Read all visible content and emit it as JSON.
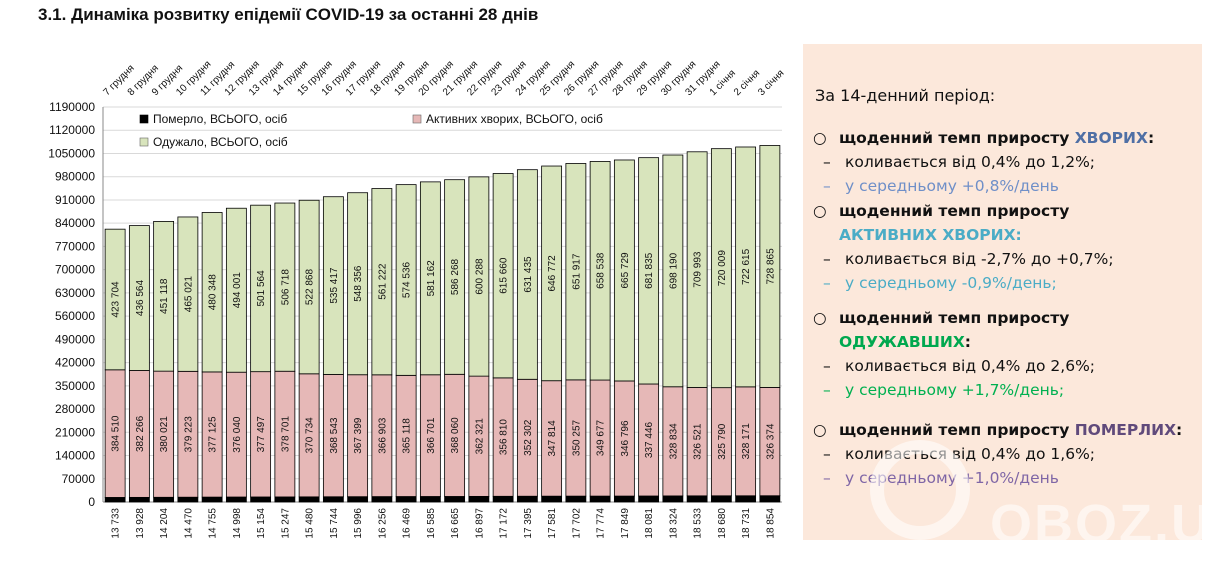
{
  "title": "3.1.  Динаміка розвитку епідемії COVID-19 за останні 28 днів",
  "chart_data": {
    "type": "bar",
    "stacked": true,
    "categories": [
      "7 грудня",
      "8 грудня",
      "9 грудня",
      "10 грудня",
      "11 грудня",
      "12 грудня",
      "13 грудня",
      "14 грудня",
      "15 грудня",
      "16 грудня",
      "17 грудня",
      "18 грудня",
      "19 грудня",
      "20 грудня",
      "21 грудня",
      "22 грудня",
      "23 грудня",
      "24 грудня",
      "25 грудня",
      "26 грудня",
      "27 грудня",
      "28 грудня",
      "29 грудня",
      "30 грудня",
      "31 грудня",
      "1 січня",
      "2 січня",
      "3 січня"
    ],
    "series": [
      {
        "name": "Померло, ВСЬОГО, осіб",
        "color": "#000000",
        "values": [
          13733,
          13928,
          14204,
          14470,
          14755,
          14998,
          15154,
          15247,
          15480,
          15744,
          15996,
          16256,
          16469,
          16585,
          16665,
          16897,
          17172,
          17395,
          17581,
          17702,
          17774,
          17849,
          18081,
          18324,
          18533,
          18680,
          18731,
          18854
        ]
      },
      {
        "name": "Активних хворих, ВСЬОГО, осіб",
        "color": "#e6b8b7",
        "values": [
          384510,
          382266,
          380021,
          379223,
          377125,
          376040,
          377497,
          378701,
          370734,
          368543,
          367399,
          366903,
          365118,
          366701,
          368060,
          362321,
          356810,
          352302,
          347814,
          350257,
          349677,
          346796,
          337446,
          328834,
          326521,
          325790,
          328171,
          326374
        ]
      },
      {
        "name": "Одужало, ВСЬОГО, осіб",
        "color": "#d8e4bc",
        "values": [
          423704,
          436564,
          451118,
          465021,
          480348,
          494001,
          501564,
          506718,
          522868,
          535417,
          548356,
          561222,
          574536,
          581162,
          586268,
          600288,
          615660,
          631435,
          646772,
          651917,
          658538,
          665729,
          681835,
          698190,
          709993,
          720009,
          722615,
          728865
        ]
      }
    ],
    "ylim": [
      0,
      1190000
    ],
    "yticks": [
      0,
      70000,
      140000,
      210000,
      280000,
      350000,
      420000,
      490000,
      560000,
      630000,
      700000,
      770000,
      840000,
      910000,
      980000,
      1050000,
      1120000,
      1190000
    ],
    "grid": true,
    "legend": "top-left"
  },
  "panel": {
    "intro": "За 14-денний період:",
    "sections": [
      {
        "head": "щоденний темп приросту ",
        "key": "ХВОРИХ",
        "tail": ":",
        "key_color": "#4f6fa5",
        "range": "коливається від 0,4% до 1,2%;",
        "avg": "у середньому +0,8%/день",
        "avg_color": "#6f8fc8"
      },
      {
        "head": "щоденний темп приросту ",
        "key": "АКТИВНИХ ХВОРИХ:",
        "tail": "",
        "key_color": "#4bacc6",
        "range": "коливається від -2,7% до +0,7%;",
        "avg": "у середньому -0,9%/день;",
        "avg_color": "#4bacc6"
      },
      {
        "head": "щоденний темп приросту ",
        "key": "ОДУЖАВШИХ",
        "tail": ":",
        "key_color": "#00a84f",
        "range": "коливається від 0,4% до 2,6%;",
        "avg": "у середньому +1,7%/день;",
        "avg_color": "#00b050"
      },
      {
        "head": "щоденний темп приросту ",
        "key": "ПОМЕРЛИХ",
        "tail": ":",
        "key_color": "#604a7b",
        "range": "коливається від 0,4% до 1,6%;",
        "avg": "у середньому +1,0%/день",
        "avg_color": "#7f66a6"
      }
    ]
  },
  "watermark": "OBOZ.UA"
}
